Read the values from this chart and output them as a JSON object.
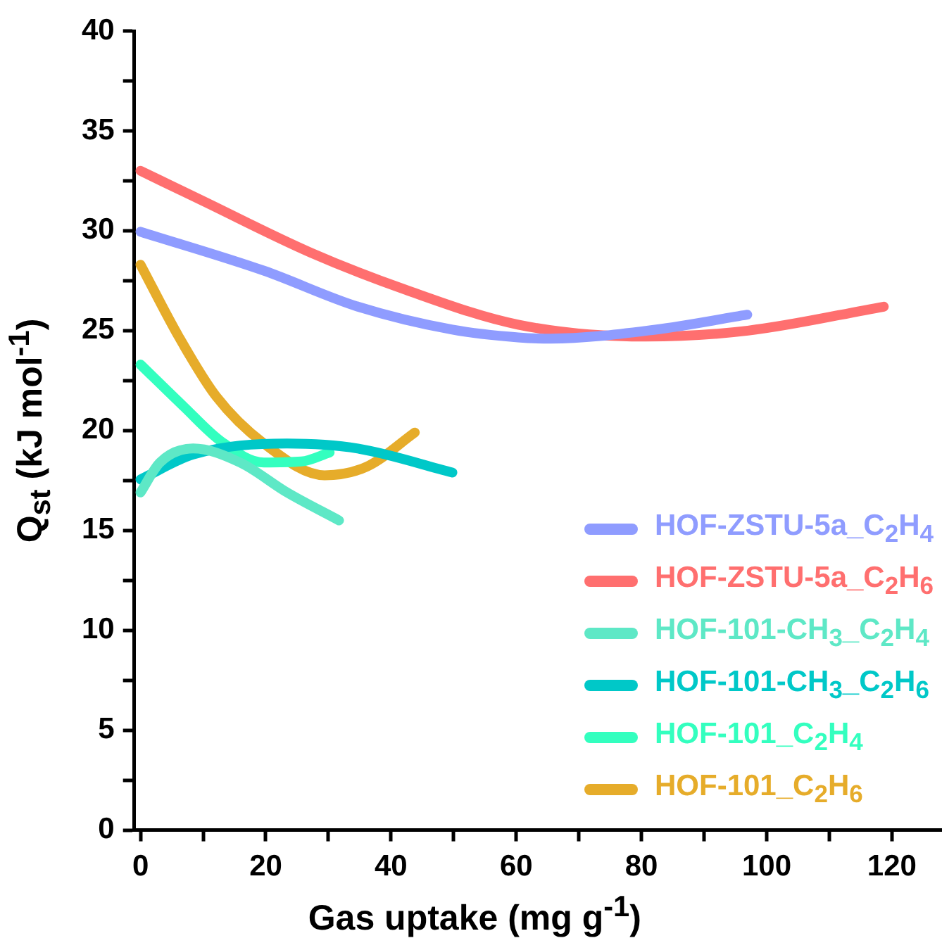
{
  "chart_data": {
    "type": "line",
    "xlabel": "Gas uptake (mg g$^{-1}$)",
    "ylabel": "Q$_{st}$ (kJ mol$^{-1}$)",
    "xlim": [
      -1,
      128
    ],
    "xticks": [
      0,
      {
        "value": 10,
        "label": null
      },
      20,
      {
        "value": 30,
        "label": null
      },
      40,
      {
        "value": 50,
        "label": null
      },
      60,
      {
        "value": 70,
        "label": null
      },
      80,
      {
        "value": 90,
        "label": null
      },
      100,
      {
        "value": 110,
        "label": null
      },
      120
    ],
    "ylim": [
      0,
      40
    ],
    "yticks": [
      0,
      {
        "value": 2.5,
        "label": null
      },
      5,
      {
        "value": 7.5,
        "label": null
      },
      10,
      {
        "value": 12.5,
        "label": null
      },
      15,
      {
        "value": 17.5,
        "label": null
      },
      20,
      {
        "value": 22.5,
        "label": null
      },
      25,
      {
        "value": 27.5,
        "label": null
      },
      30,
      {
        "value": 32.5,
        "label": null
      },
      35,
      {
        "value": 37.5,
        "label": null
      },
      40
    ],
    "grid": false,
    "legend": "bottom right",
    "marker": "none",
    "line_style": "solid",
    "series": [
      {
        "name": "HOF-ZSTU-5a_C$_{2}$H$_{4}$",
        "color": "#8f9cff",
        "x": [
          0,
          19.7,
          34.7,
          49.8,
          60.3,
          65.5,
          82.2,
          96.9
        ],
        "values": [
          29.95,
          28.0,
          26.2,
          25.05,
          24.66,
          24.6,
          25.05,
          25.8
        ]
      },
      {
        "name": "HOF-ZSTU-5a_C$_{2}$H$_{6}$",
        "color": "#ff6f6f",
        "x": [
          0,
          9.9,
          27.2,
          42.3,
          60.3,
          80.7,
          97,
          118.7
        ],
        "values": [
          33.0,
          31.5,
          28.9,
          27.05,
          25.3,
          24.7,
          25.0,
          26.2
        ]
      },
      {
        "name": "HOF-101-CH$_{3}$_C$_{2}$H$_{4}$",
        "color": "#5ee8c6",
        "x": [
          0,
          3.1,
          8.4,
          15.9,
          23.4,
          31.7
        ],
        "values": [
          16.9,
          18.4,
          19.1,
          18.4,
          16.9,
          15.5
        ]
      },
      {
        "name": "HOF-101-CH$_{3}$_C$_{2}$H$_{6}$",
        "color": "#00c8c8",
        "x": [
          0,
          8.4,
          23.4,
          34.7,
          49.8
        ],
        "values": [
          17.55,
          18.8,
          19.35,
          19.1,
          17.9
        ]
      },
      {
        "name": "HOF-101_C$_{2}$H$_{4}$",
        "color": "#33ffbf",
        "x": [
          0,
          6.9,
          12.9,
          19.7,
          25.7,
          30.2
        ],
        "values": [
          23.3,
          21.2,
          19.45,
          18.4,
          18.45,
          18.9
        ]
      },
      {
        "name": "HOF-101_C$_{2}$H$_{6}$",
        "color": "#e6ac2a",
        "x": [
          0,
          6.1,
          12.1,
          19.7,
          29.4,
          36.2,
          43.8
        ],
        "values": [
          28.3,
          24.7,
          21.7,
          19.35,
          17.76,
          18.2,
          19.9
        ]
      }
    ]
  }
}
